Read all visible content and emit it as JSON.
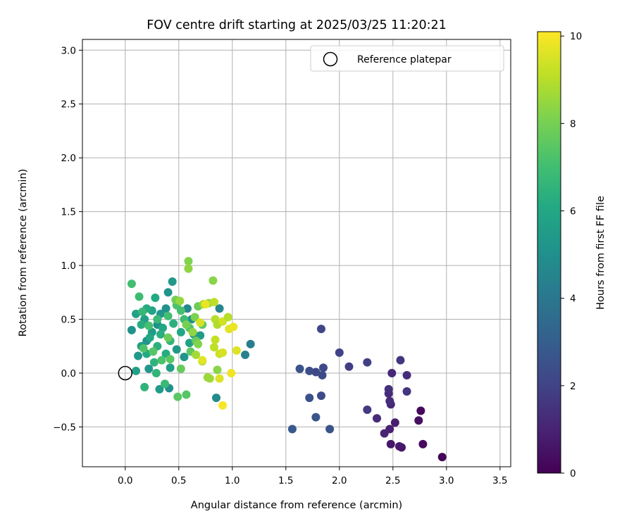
{
  "chart_data": {
    "type": "scatter",
    "title": "FOV centre drift starting at 2025/03/25 11:20:21",
    "xlabel": "Angular distance from reference (arcmin)",
    "ylabel": "Rotation from reference (arcmin)",
    "xlim": [
      -0.4,
      3.6
    ],
    "ylim": [
      -0.87,
      3.1
    ],
    "xticks": [
      0.0,
      0.5,
      1.0,
      1.5,
      2.0,
      2.5,
      3.0,
      3.5
    ],
    "xtick_labels": [
      "0.0",
      "0.5",
      "1.0",
      "1.5",
      "2.0",
      "2.5",
      "3.0",
      "3.5"
    ],
    "yticks": [
      -0.5,
      0.0,
      0.5,
      1.0,
      1.5,
      2.0,
      2.5,
      3.0
    ],
    "ytick_labels": [
      "−0.5",
      "0.0",
      "0.5",
      "1.0",
      "1.5",
      "2.0",
      "2.5",
      "3.0"
    ],
    "grid": true,
    "legend": {
      "placement": "top-right",
      "entries": [
        "Reference platepar"
      ]
    },
    "reference_point": {
      "x": 0.0,
      "y": 0.0,
      "label": "Reference platepar"
    },
    "colorbar": {
      "label": "Hours from first FF file",
      "colormap": "viridis",
      "range": [
        0,
        10.1
      ],
      "ticks": [
        0,
        2,
        4,
        6,
        8,
        10
      ],
      "tick_labels": [
        "0",
        "2",
        "4",
        "6",
        "8",
        "10"
      ]
    },
    "points": [
      {
        "x": 2.96,
        "y": -0.78,
        "c": 0.1
      },
      {
        "x": 2.78,
        "y": -0.66,
        "c": 0.3
      },
      {
        "x": 2.76,
        "y": -0.35,
        "c": 0.2
      },
      {
        "x": 2.74,
        "y": -0.44,
        "c": 0.4
      },
      {
        "x": 2.58,
        "y": -0.69,
        "c": 0.5
      },
      {
        "x": 2.56,
        "y": -0.68,
        "c": 0.7
      },
      {
        "x": 2.48,
        "y": -0.66,
        "c": 0.6
      },
      {
        "x": 2.47,
        "y": -0.52,
        "c": 0.9
      },
      {
        "x": 2.52,
        "y": -0.46,
        "c": 0.8
      },
      {
        "x": 2.42,
        "y": -0.56,
        "c": 1.0
      },
      {
        "x": 2.35,
        "y": -0.42,
        "c": 1.2
      },
      {
        "x": 2.48,
        "y": -0.29,
        "c": 1.1
      },
      {
        "x": 2.47,
        "y": -0.26,
        "c": 1.3
      },
      {
        "x": 2.46,
        "y": -0.19,
        "c": 1.2
      },
      {
        "x": 2.46,
        "y": -0.15,
        "c": 1.4
      },
      {
        "x": 2.49,
        "y": 0.0,
        "c": 1.1
      },
      {
        "x": 2.57,
        "y": 0.12,
        "c": 1.5
      },
      {
        "x": 2.63,
        "y": -0.02,
        "c": 1.3
      },
      {
        "x": 2.63,
        "y": -0.17,
        "c": 1.5
      },
      {
        "x": 2.26,
        "y": -0.34,
        "c": 1.7
      },
      {
        "x": 2.26,
        "y": 0.1,
        "c": 1.9
      },
      {
        "x": 2.09,
        "y": 0.06,
        "c": 1.8
      },
      {
        "x": 2.0,
        "y": 0.19,
        "c": 2.0
      },
      {
        "x": 1.83,
        "y": 0.41,
        "c": 2.1
      },
      {
        "x": 1.85,
        "y": 0.05,
        "c": 2.2
      },
      {
        "x": 1.84,
        "y": -0.02,
        "c": 2.3
      },
      {
        "x": 1.78,
        "y": 0.01,
        "c": 2.2
      },
      {
        "x": 1.72,
        "y": 0.02,
        "c": 2.4
      },
      {
        "x": 1.63,
        "y": 0.04,
        "c": 2.6
      },
      {
        "x": 1.83,
        "y": -0.21,
        "c": 2.3
      },
      {
        "x": 1.72,
        "y": -0.23,
        "c": 2.5
      },
      {
        "x": 1.78,
        "y": -0.41,
        "c": 2.7
      },
      {
        "x": 1.91,
        "y": -0.52,
        "c": 2.6
      },
      {
        "x": 1.56,
        "y": -0.52,
        "c": 2.8
      },
      {
        "x": 1.17,
        "y": 0.27,
        "c": 4.3
      },
      {
        "x": 1.12,
        "y": 0.17,
        "c": 4.5
      },
      {
        "x": 0.88,
        "y": 0.6,
        "c": 4.6
      },
      {
        "x": 0.85,
        "y": -0.23,
        "c": 4.8
      },
      {
        "x": 0.58,
        "y": 0.6,
        "c": 4.7
      },
      {
        "x": 0.62,
        "y": 0.5,
        "c": 5.0
      },
      {
        "x": 0.4,
        "y": 0.75,
        "c": 5.2
      },
      {
        "x": 0.44,
        "y": 0.85,
        "c": 5.4
      },
      {
        "x": 0.38,
        "y": 0.6,
        "c": 5.1
      },
      {
        "x": 0.33,
        "y": 0.55,
        "c": 5.3
      },
      {
        "x": 0.3,
        "y": 0.45,
        "c": 5.0
      },
      {
        "x": 0.25,
        "y": 0.38,
        "c": 5.5
      },
      {
        "x": 0.2,
        "y": 0.3,
        "c": 5.2
      },
      {
        "x": 0.15,
        "y": 0.25,
        "c": 5.6
      },
      {
        "x": 0.12,
        "y": 0.16,
        "c": 5.4
      },
      {
        "x": 0.1,
        "y": 0.02,
        "c": 5.7
      },
      {
        "x": 0.06,
        "y": 0.4,
        "c": 5.1
      },
      {
        "x": 0.22,
        "y": 0.04,
        "c": 5.3
      },
      {
        "x": 0.32,
        "y": -0.15,
        "c": 5.5
      },
      {
        "x": 0.41,
        "y": -0.14,
        "c": 5.0
      },
      {
        "x": 0.42,
        "y": 0.05,
        "c": 5.6
      },
      {
        "x": 0.48,
        "y": 0.22,
        "c": 5.4
      },
      {
        "x": 0.55,
        "y": 0.15,
        "c": 5.2
      },
      {
        "x": 0.6,
        "y": 0.28,
        "c": 5.8
      },
      {
        "x": 0.64,
        "y": 0.36,
        "c": 5.0
      },
      {
        "x": 0.7,
        "y": 0.35,
        "c": 5.5
      },
      {
        "x": 0.1,
        "y": 0.55,
        "c": 5.8
      },
      {
        "x": 0.18,
        "y": 0.5,
        "c": 5.7
      },
      {
        "x": 0.25,
        "y": 0.58,
        "c": 5.9
      },
      {
        "x": 0.35,
        "y": 0.42,
        "c": 6.0
      },
      {
        "x": 0.28,
        "y": 0.7,
        "c": 6.1
      },
      {
        "x": 0.2,
        "y": 0.6,
        "c": 6.2
      },
      {
        "x": 0.15,
        "y": 0.45,
        "c": 6.3
      },
      {
        "x": 0.23,
        "y": 0.33,
        "c": 6.0
      },
      {
        "x": 0.3,
        "y": 0.25,
        "c": 6.4
      },
      {
        "x": 0.38,
        "y": 0.18,
        "c": 6.2
      },
      {
        "x": 0.27,
        "y": 0.1,
        "c": 6.5
      },
      {
        "x": 0.2,
        "y": 0.18,
        "c": 6.1
      },
      {
        "x": 0.33,
        "y": 0.36,
        "c": 6.3
      },
      {
        "x": 0.42,
        "y": 0.3,
        "c": 6.6
      },
      {
        "x": 0.45,
        "y": 0.46,
        "c": 6.4
      },
      {
        "x": 0.52,
        "y": 0.38,
        "c": 6.0
      },
      {
        "x": 0.18,
        "y": -0.13,
        "c": 6.5
      },
      {
        "x": 0.37,
        "y": -0.1,
        "c": 6.8
      },
      {
        "x": 0.29,
        "y": 0.0,
        "c": 6.6
      },
      {
        "x": 0.13,
        "y": 0.71,
        "c": 6.9
      },
      {
        "x": 0.06,
        "y": 0.83,
        "c": 7.0
      },
      {
        "x": 0.16,
        "y": 0.57,
        "c": 6.7
      },
      {
        "x": 0.22,
        "y": 0.44,
        "c": 7.1
      },
      {
        "x": 0.3,
        "y": 0.5,
        "c": 6.8
      },
      {
        "x": 0.4,
        "y": 0.53,
        "c": 7.0
      },
      {
        "x": 0.48,
        "y": 0.63,
        "c": 7.2
      },
      {
        "x": 0.52,
        "y": 0.58,
        "c": 7.1
      },
      {
        "x": 0.55,
        "y": 0.5,
        "c": 6.9
      },
      {
        "x": 0.6,
        "y": 0.42,
        "c": 7.3
      },
      {
        "x": 0.26,
        "y": 0.2,
        "c": 7.4
      },
      {
        "x": 0.34,
        "y": 0.12,
        "c": 7.2
      },
      {
        "x": 0.42,
        "y": 0.13,
        "c": 7.5
      },
      {
        "x": 0.17,
        "y": 0.23,
        "c": 7.3
      },
      {
        "x": 0.49,
        "y": -0.22,
        "c": 7.5
      },
      {
        "x": 0.57,
        "y": -0.2,
        "c": 7.4
      },
      {
        "x": 0.61,
        "y": 0.2,
        "c": 7.6
      },
      {
        "x": 0.66,
        "y": 0.3,
        "c": 7.7
      },
      {
        "x": 0.72,
        "y": 0.45,
        "c": 7.6
      },
      {
        "x": 0.68,
        "y": 0.62,
        "c": 7.8
      },
      {
        "x": 0.52,
        "y": 0.04,
        "c": 7.7
      },
      {
        "x": 0.47,
        "y": 0.68,
        "c": 7.9
      },
      {
        "x": 0.57,
        "y": 0.45,
        "c": 8.0
      },
      {
        "x": 0.65,
        "y": 0.52,
        "c": 8.1
      },
      {
        "x": 0.4,
        "y": 0.33,
        "c": 7.8
      },
      {
        "x": 0.59,
        "y": 1.04,
        "c": 8.2
      },
      {
        "x": 0.59,
        "y": 0.97,
        "c": 8.4
      },
      {
        "x": 0.82,
        "y": 0.86,
        "c": 8.3
      },
      {
        "x": 0.51,
        "y": 0.67,
        "c": 8.5
      },
      {
        "x": 0.63,
        "y": 0.38,
        "c": 8.4
      },
      {
        "x": 0.68,
        "y": 0.27,
        "c": 8.2
      },
      {
        "x": 0.73,
        "y": 0.64,
        "c": 8.6
      },
      {
        "x": 0.78,
        "y": 0.65,
        "c": 8.5
      },
      {
        "x": 0.86,
        "y": 0.03,
        "c": 8.3
      },
      {
        "x": 0.79,
        "y": -0.05,
        "c": 8.7
      },
      {
        "x": 0.77,
        "y": -0.04,
        "c": 8.6
      },
      {
        "x": 0.72,
        "y": 0.11,
        "c": 8.8
      },
      {
        "x": 0.66,
        "y": 0.17,
        "c": 8.7
      },
      {
        "x": 0.84,
        "y": 0.5,
        "c": 9.0
      },
      {
        "x": 0.86,
        "y": 0.45,
        "c": 8.9
      },
      {
        "x": 0.83,
        "y": 0.24,
        "c": 9.1
      },
      {
        "x": 0.84,
        "y": 0.31,
        "c": 9.2
      },
      {
        "x": 0.88,
        "y": 0.18,
        "c": 9.3
      },
      {
        "x": 0.91,
        "y": 0.48,
        "c": 9.4
      },
      {
        "x": 0.96,
        "y": 0.52,
        "c": 9.0
      },
      {
        "x": 0.83,
        "y": 0.66,
        "c": 9.1
      },
      {
        "x": 0.91,
        "y": 0.19,
        "c": 9.5
      },
      {
        "x": 0.88,
        "y": -0.05,
        "c": 9.6
      },
      {
        "x": 0.97,
        "y": 0.41,
        "c": 9.7
      },
      {
        "x": 1.01,
        "y": 0.43,
        "c": 9.8
      },
      {
        "x": 1.04,
        "y": 0.21,
        "c": 9.6
      },
      {
        "x": 0.99,
        "y": 0.0,
        "c": 9.9
      },
      {
        "x": 0.91,
        "y": -0.3,
        "c": 10.0
      },
      {
        "x": 0.7,
        "y": 0.47,
        "c": 9.5
      },
      {
        "x": 0.72,
        "y": 0.12,
        "c": 9.7
      },
      {
        "x": 0.75,
        "y": 0.64,
        "c": 9.8
      }
    ]
  }
}
